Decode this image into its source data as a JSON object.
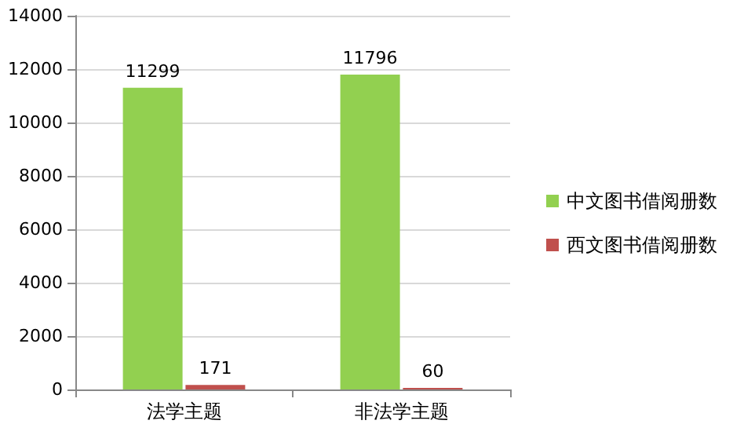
{
  "chart_data": {
    "type": "bar",
    "categories": [
      "法学主题",
      "非法学主题"
    ],
    "series": [
      {
        "name": "中文图书借阅册数",
        "color": "#92d050",
        "values": [
          11299,
          11796
        ]
      },
      {
        "name": "西文图书借阅册数",
        "color": "#c0504d",
        "values": [
          171,
          60
        ]
      }
    ],
    "ylim": [
      0,
      14000
    ],
    "yticks": [
      0,
      2000,
      4000,
      6000,
      8000,
      10000,
      12000,
      14000
    ],
    "grid": "y",
    "legend": "right",
    "data_labels": true
  }
}
